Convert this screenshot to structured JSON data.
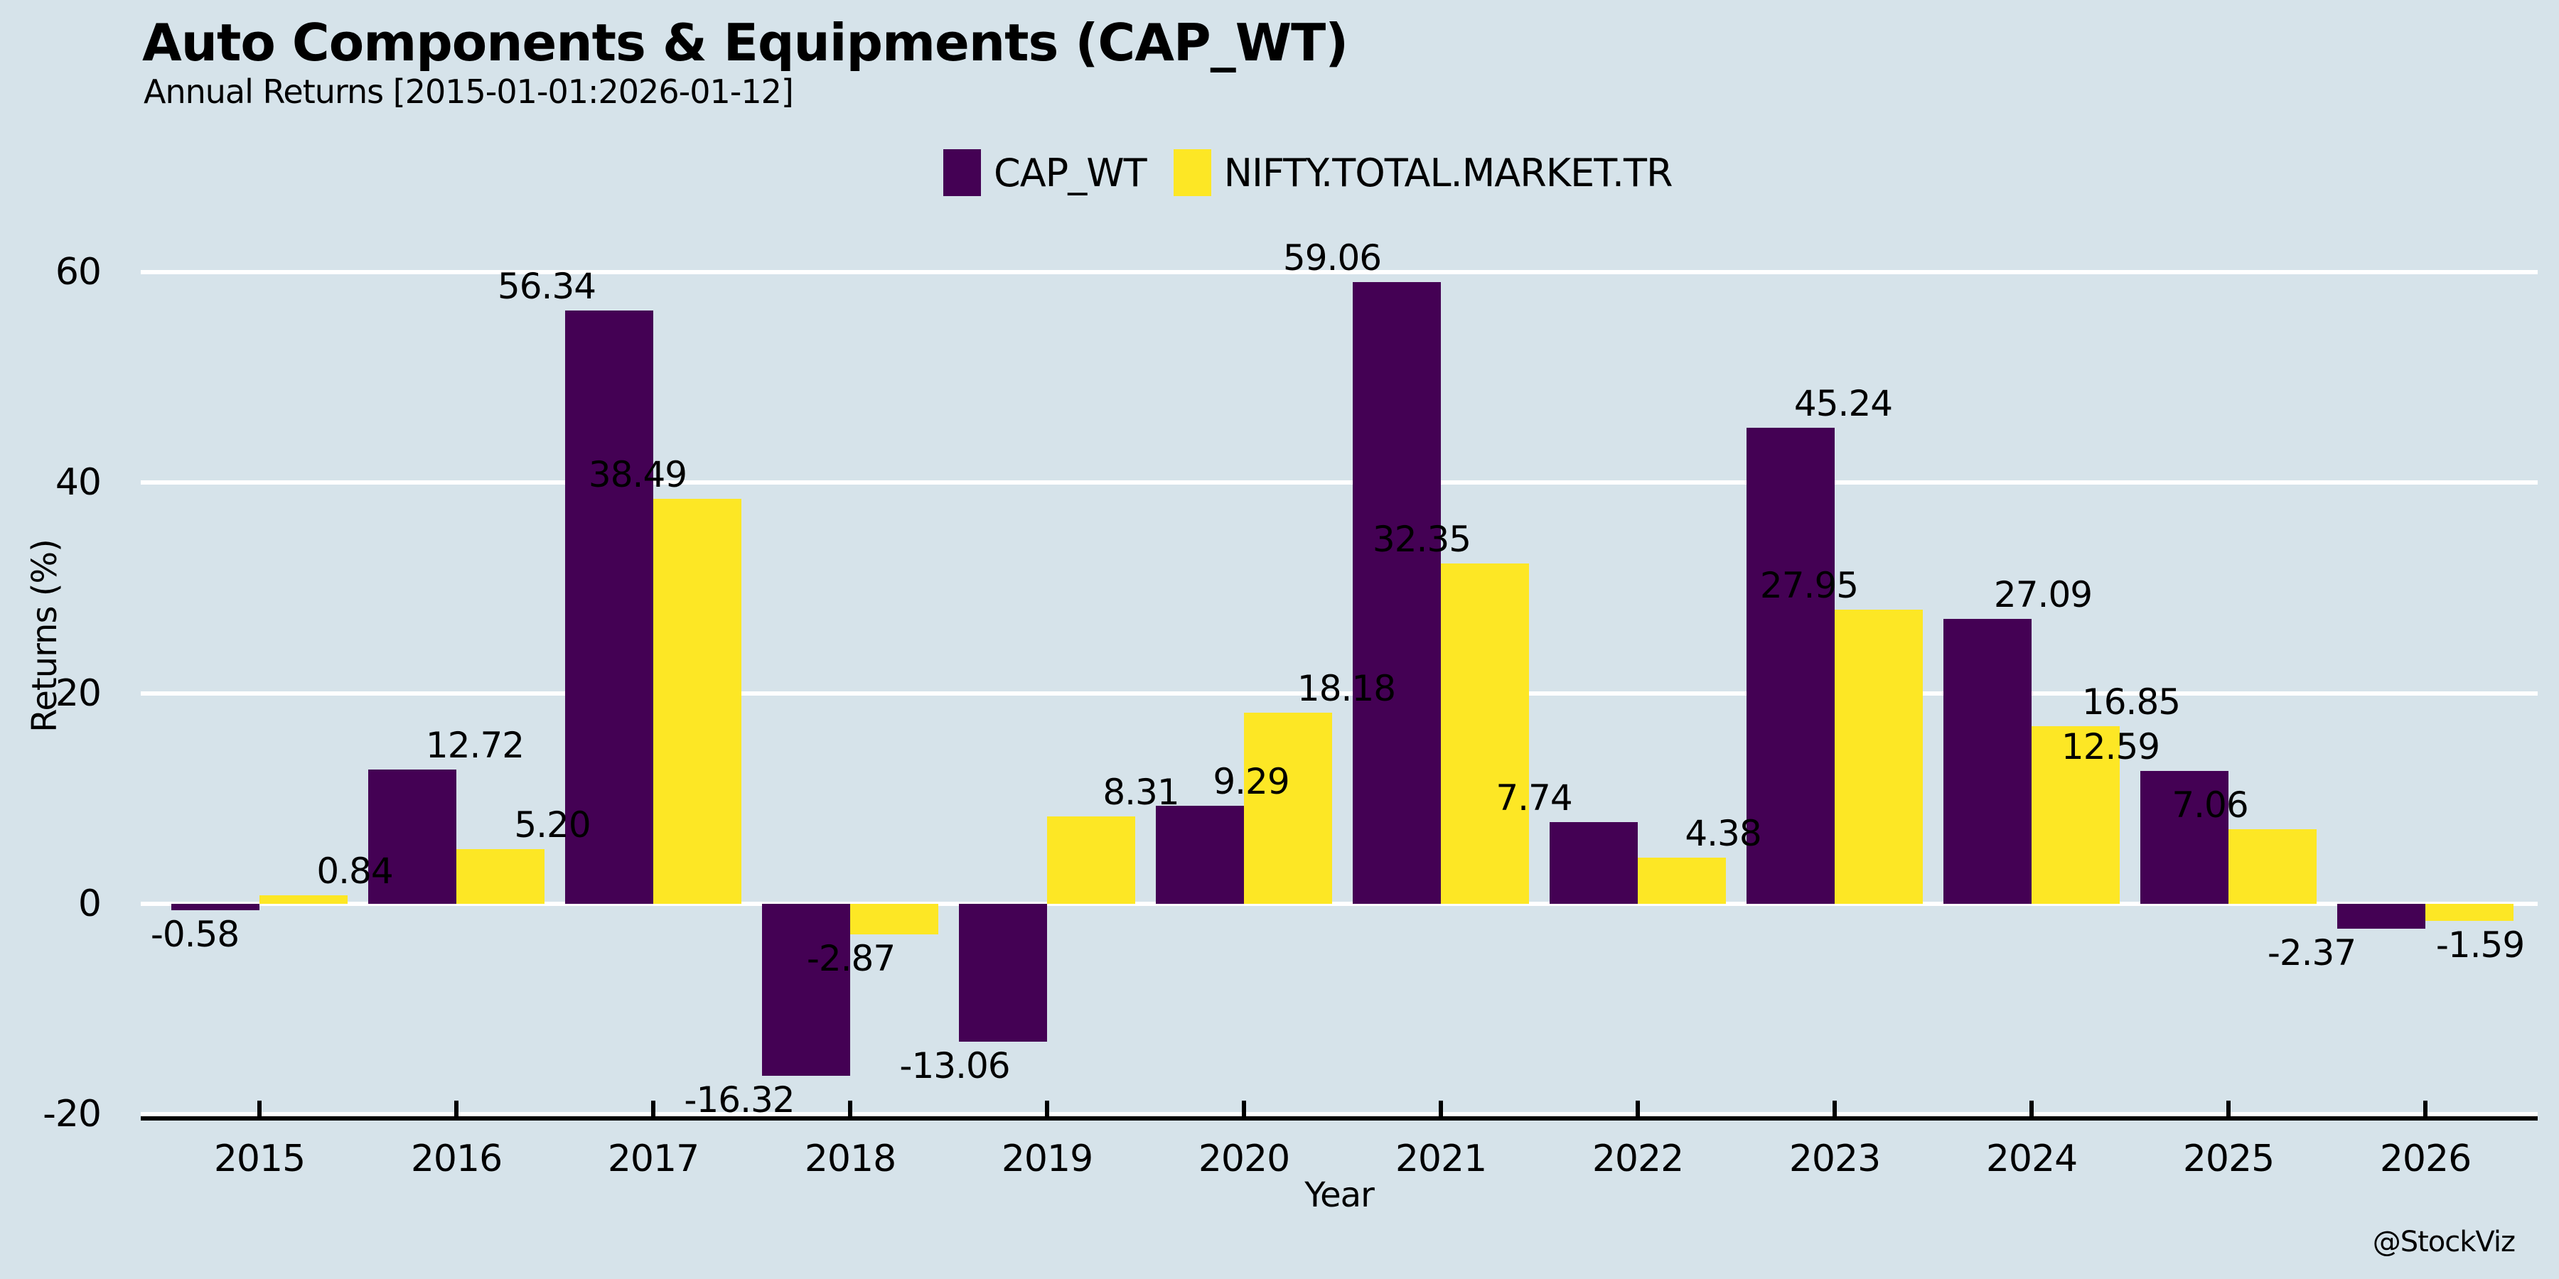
{
  "title": "Auto Components & Equipments (CAP_WT)",
  "subtitle": "Annual Returns [2015-01-01:2026-01-12]",
  "watermark": "@StockViz",
  "colors": {
    "background": "#d6e3ea",
    "cap_wt": "#440154",
    "nifty": "#fde725",
    "grid": "#ffffff",
    "axis": "#000000",
    "text": "#000000"
  },
  "legend": {
    "items": [
      {
        "label": "CAP_WT",
        "color_key": "cap_wt"
      },
      {
        "label": "NIFTY.TOTAL.MARKET.TR",
        "color_key": "nifty"
      }
    ]
  },
  "chart_data": {
    "type": "bar",
    "title": "Auto Components & Equipments (CAP_WT)",
    "subtitle": "Annual Returns [2015-01-01:2026-01-12]",
    "xlabel": "Year",
    "ylabel": "Returns (%)",
    "categories": [
      "2015",
      "2016",
      "2017",
      "2018",
      "2019",
      "2020",
      "2021",
      "2022",
      "2023",
      "2024",
      "2025",
      "2026"
    ],
    "series": [
      {
        "name": "CAP_WT",
        "color_key": "cap_wt",
        "values": [
          -0.58,
          12.72,
          56.34,
          -16.32,
          -13.06,
          9.29,
          59.06,
          7.74,
          45.24,
          27.09,
          12.59,
          -2.37
        ]
      },
      {
        "name": "NIFTY.TOTAL.MARKET.TR",
        "color_key": "nifty",
        "values": [
          0.84,
          5.2,
          38.49,
          -2.87,
          8.31,
          18.18,
          32.35,
          4.38,
          27.95,
          16.85,
          7.06,
          -1.59
        ]
      }
    ],
    "bar_labels": [
      [
        "-0.58",
        "12.72",
        "56.34",
        "-16.32",
        "-13.06",
        "9.29",
        "59.06",
        "7.74",
        "45.24",
        "27.09",
        "12.59",
        "-2.37"
      ],
      [
        "0.84",
        "5.20",
        "38.49",
        "-2.87",
        "8.31",
        "18.18",
        "32.35",
        "4.38",
        "27.95",
        "16.85",
        "7.06",
        "-1.59"
      ]
    ],
    "yticks": [
      "60",
      "40",
      "20",
      "0",
      "-20"
    ],
    "ytick_values": [
      60,
      40,
      20,
      0,
      -20
    ],
    "ylim": [
      -28,
      63
    ],
    "grid": true,
    "legend_position": "top",
    "label_dx_hint": [
      [
        -29,
        88,
        -88,
        -94,
        -68,
        72,
        -91,
        -84,
        74,
        78,
        -104,
        -98
      ],
      [
        72,
        73,
        -84,
        -61,
        70,
        82,
        -89,
        58,
        -98,
        78,
        -88,
        15
      ]
    ]
  }
}
